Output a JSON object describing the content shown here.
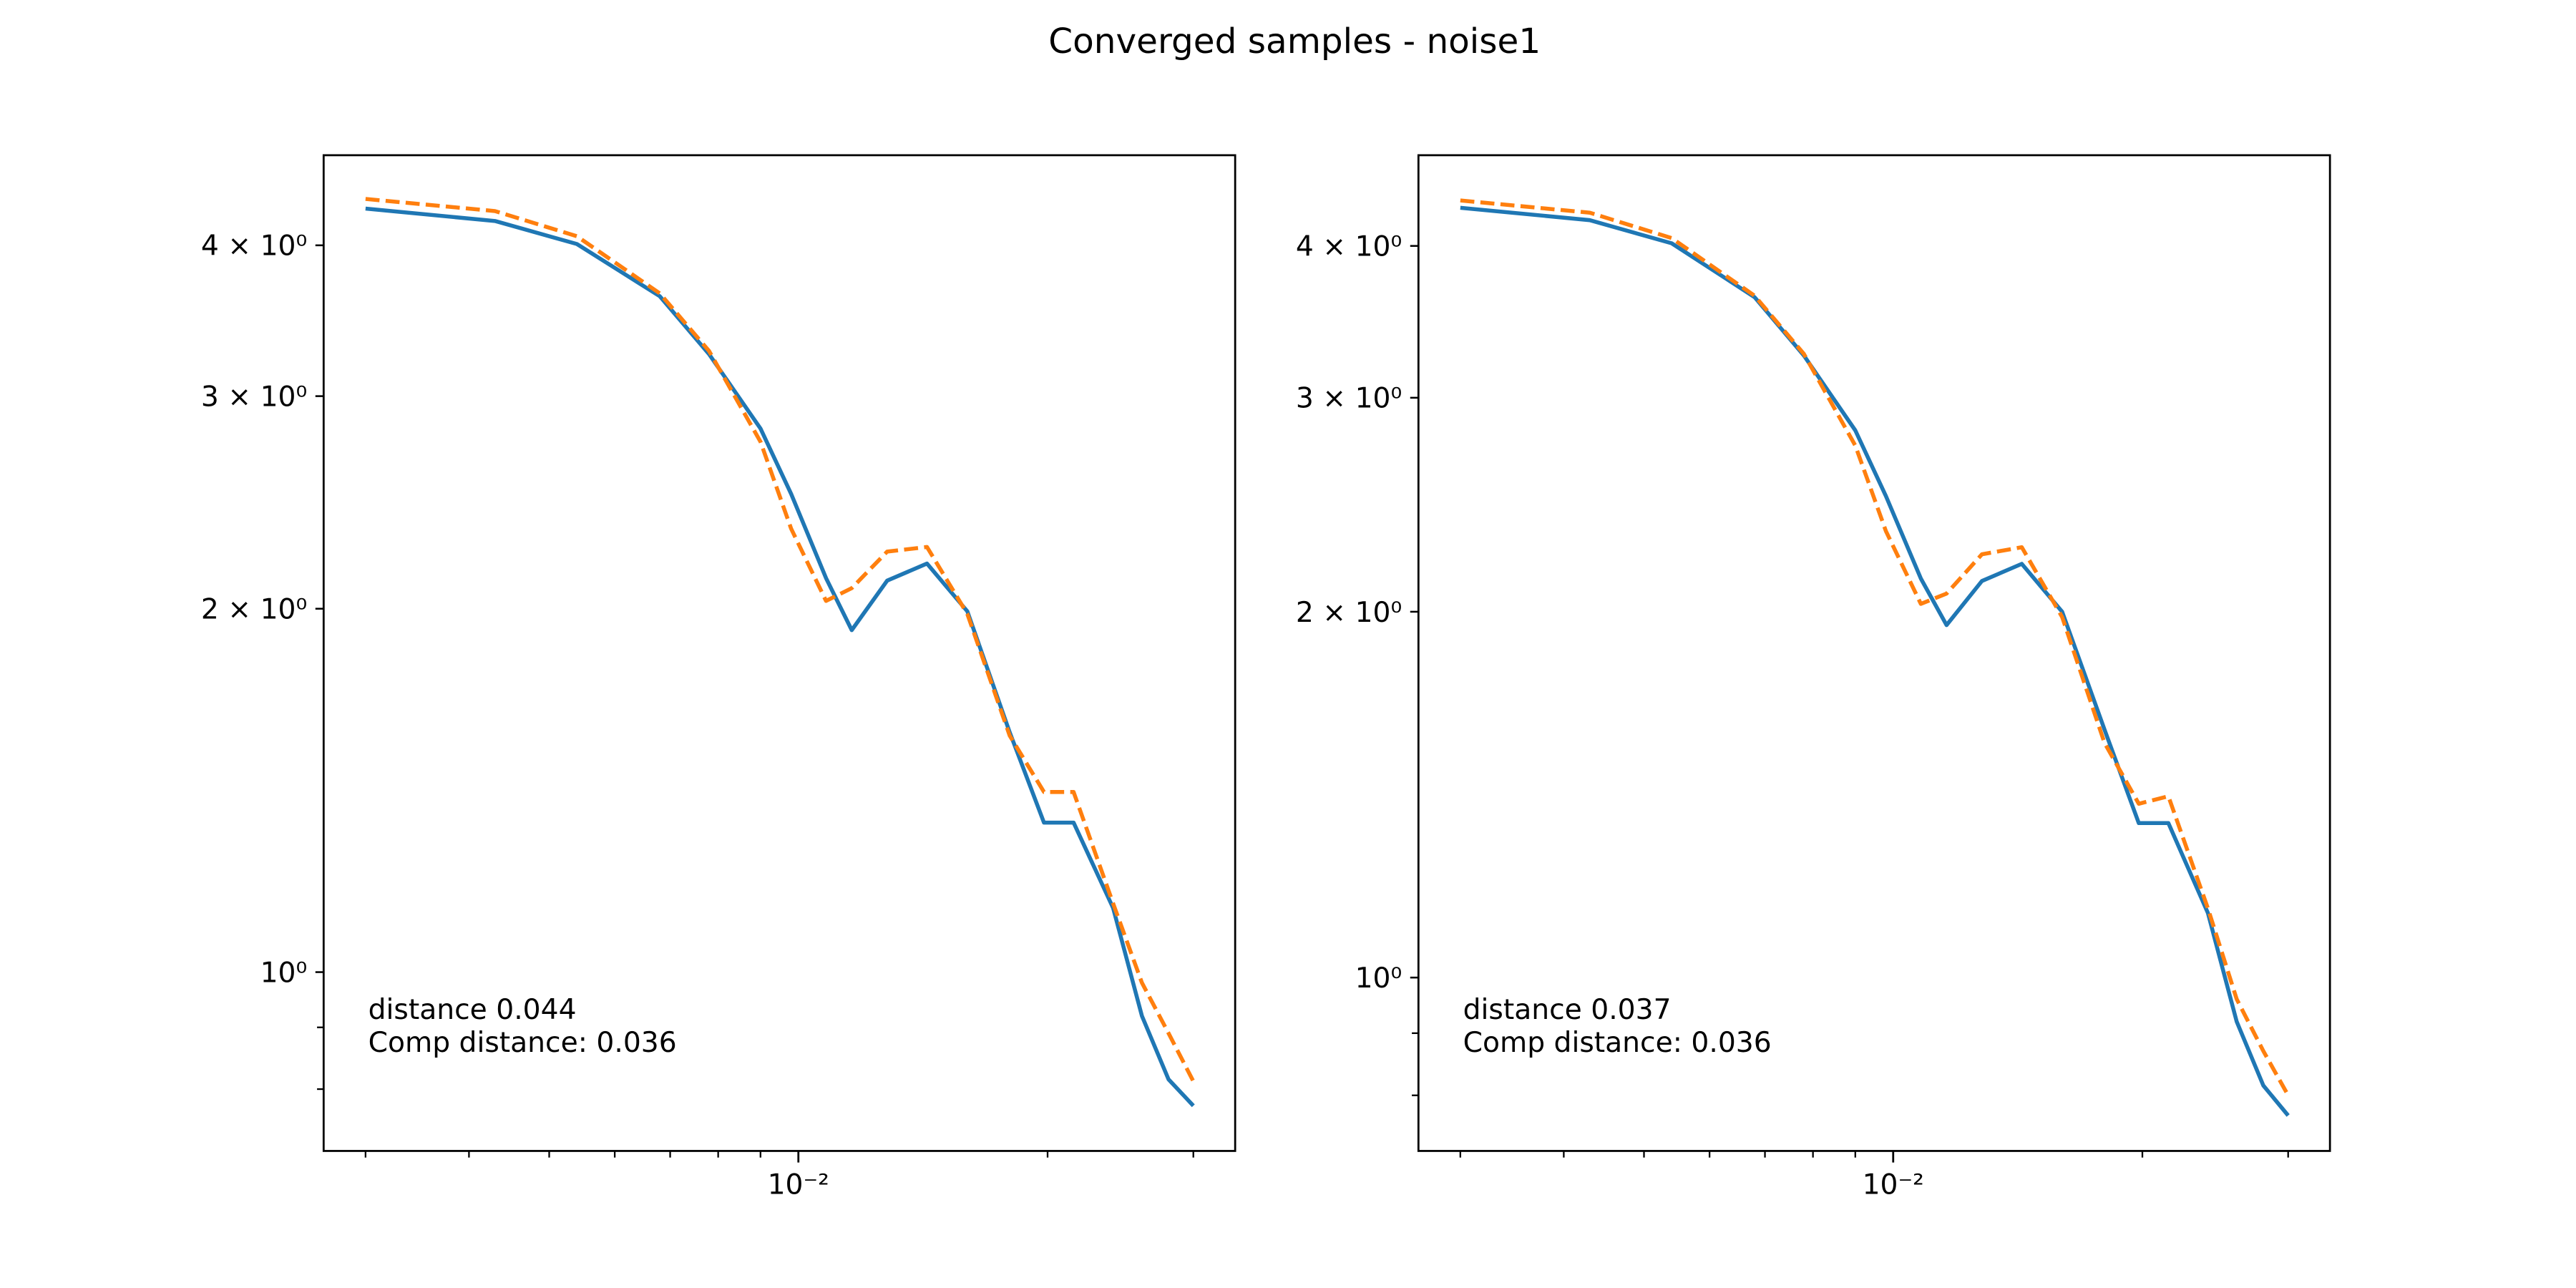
{
  "title": "Converged samples - noise1",
  "chart_data": [
    {
      "type": "line",
      "xscale": "log",
      "yscale": "log",
      "x": [
        0.003,
        0.0043,
        0.0054,
        0.0068,
        0.0078,
        0.009,
        0.0098,
        0.0108,
        0.0116,
        0.0128,
        0.0143,
        0.016,
        0.018,
        0.0198,
        0.0215,
        0.024,
        0.026,
        0.028,
        0.03
      ],
      "series": [
        {
          "color": "#1f77b4",
          "linestyle": "solid",
          "values": [
            4.29,
            4.19,
            4.01,
            3.63,
            3.25,
            2.82,
            2.49,
            2.12,
            1.92,
            2.11,
            2.18,
            1.99,
            1.58,
            1.33,
            1.33,
            1.13,
            0.92,
            0.815,
            0.775
          ]
        },
        {
          "color": "#ff7f0e",
          "linestyle": "dashed",
          "values": [
            4.37,
            4.27,
            4.07,
            3.65,
            3.27,
            2.75,
            2.33,
            2.03,
            2.08,
            2.23,
            2.25,
            1.98,
            1.57,
            1.41,
            1.41,
            1.14,
            0.98,
            0.89,
            0.812
          ]
        }
      ],
      "xlim": [
        0.00267,
        0.0337
      ],
      "xticks": [
        {
          "value": 0.01,
          "label": "10⁻²"
        }
      ],
      "xminorticks": [
        0.003,
        0.004,
        0.005,
        0.006,
        0.007,
        0.008,
        0.009,
        0.02,
        0.03
      ],
      "ylim": [
        0.711,
        4.75
      ],
      "yticks": [
        {
          "value": 1,
          "label": "10⁰"
        },
        {
          "value": 2,
          "label": "2 × 10⁰"
        },
        {
          "value": 3,
          "label": "3 × 10⁰"
        },
        {
          "value": 4,
          "label": "4 × 10⁰"
        }
      ],
      "yminorticks": [
        0.8,
        0.9
      ],
      "annotations": [
        "distance 0.044",
        "Comp distance: 0.036"
      ]
    },
    {
      "type": "line",
      "xscale": "log",
      "yscale": "log",
      "x": [
        0.003,
        0.0043,
        0.0054,
        0.0068,
        0.0078,
        0.009,
        0.0098,
        0.0108,
        0.0116,
        0.0128,
        0.0143,
        0.016,
        0.018,
        0.0198,
        0.0215,
        0.024,
        0.026,
        0.028,
        0.03
      ],
      "series": [
        {
          "color": "#1f77b4",
          "linestyle": "solid",
          "values": [
            4.3,
            4.2,
            4.02,
            3.63,
            3.25,
            2.82,
            2.49,
            2.13,
            1.95,
            2.12,
            2.19,
            2.0,
            1.6,
            1.34,
            1.34,
            1.13,
            0.92,
            0.815,
            0.77
          ]
        },
        {
          "color": "#ff7f0e",
          "linestyle": "dashed",
          "values": [
            4.36,
            4.26,
            4.06,
            3.64,
            3.26,
            2.74,
            2.33,
            2.03,
            2.07,
            2.23,
            2.26,
            1.98,
            1.56,
            1.39,
            1.41,
            1.14,
            0.96,
            0.87,
            0.8
          ]
        }
      ],
      "xlim": [
        0.00267,
        0.0337
      ],
      "xticks": [
        {
          "value": 0.01,
          "label": "10⁻²"
        }
      ],
      "xminorticks": [
        0.003,
        0.004,
        0.005,
        0.006,
        0.007,
        0.008,
        0.009,
        0.02,
        0.03
      ],
      "ylim": [
        0.72,
        4.75
      ],
      "yticks": [
        {
          "value": 1,
          "label": "10⁰"
        },
        {
          "value": 2,
          "label": "2 × 10⁰"
        },
        {
          "value": 3,
          "label": "3 × 10⁰"
        },
        {
          "value": 4,
          "label": "4 × 10⁰"
        }
      ],
      "yminorticks": [
        0.8,
        0.9
      ],
      "annotations": [
        "distance 0.037",
        "Comp distance: 0.036"
      ]
    }
  ]
}
